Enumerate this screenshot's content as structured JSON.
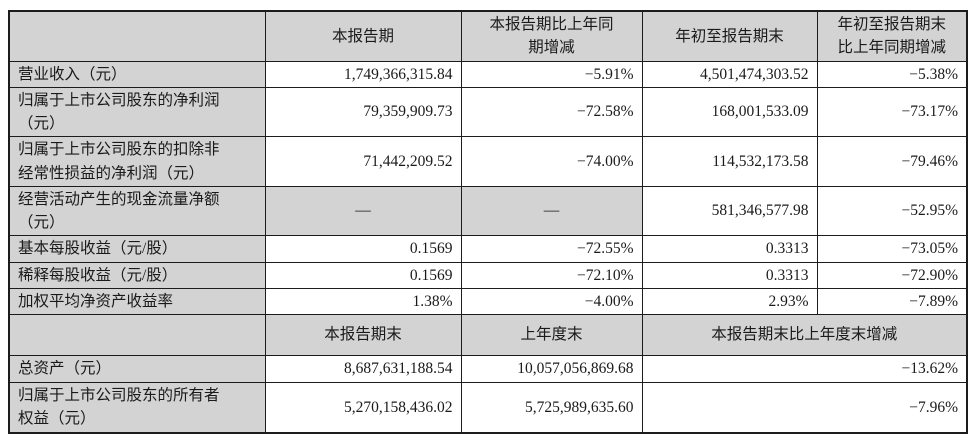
{
  "table": {
    "header1": {
      "blank": "",
      "c2": "本报告期",
      "c3": "本报告期比上年同\n期增减",
      "c4": "年初至报告期末",
      "c5": "年初至报告期末\n比上年同期增减"
    },
    "rows1": [
      {
        "label": "营业收入（元）",
        "values": [
          "1,749,366,315.84",
          "−5.91%",
          "4,501,474,303.52",
          "−5.38%"
        ]
      },
      {
        "label": "归属于上市公司股东的净利润\n（元）",
        "values": [
          "79,359,909.73",
          "−72.58%",
          "168,001,533.09",
          "−73.17%"
        ]
      },
      {
        "label": "归属于上市公司股东的扣除非\n经常性损益的净利润（元）",
        "values": [
          "71,442,209.52",
          "−74.00%",
          "114,532,173.58",
          "−79.46%"
        ]
      },
      {
        "label": "经营活动产生的现金流量净额\n（元）",
        "values": [
          "—",
          "—",
          "581,346,577.98",
          "−52.95%"
        ]
      },
      {
        "label": "基本每股收益（元/股）",
        "values": [
          "0.1569",
          "−72.55%",
          "0.3313",
          "−73.05%"
        ]
      },
      {
        "label": "稀释每股收益（元/股）",
        "values": [
          "0.1569",
          "−72.10%",
          "0.3313",
          "−72.90%"
        ]
      },
      {
        "label": "加权平均净资产收益率",
        "values": [
          "1.38%",
          "−4.00%",
          "2.93%",
          "−7.89%"
        ]
      }
    ],
    "header2": {
      "blank": "",
      "c2": "本报告期末",
      "c3": "上年度末",
      "c45": "本报告期末比上年度末增减"
    },
    "rows2": [
      {
        "label": "总资产（元）",
        "values": [
          "8,687,631,188.54",
          "10,057,056,869.68",
          "−13.62%"
        ]
      },
      {
        "label": "归属于上市公司股东的所有者\n权益（元）",
        "values": [
          "5,270,158,436.02",
          "5,725,989,635.60",
          "−7.96%"
        ]
      }
    ],
    "colors": {
      "header_bg": "#d3d3d3",
      "cell_bg": "#ffffff",
      "border": "#1c1c1c"
    }
  }
}
